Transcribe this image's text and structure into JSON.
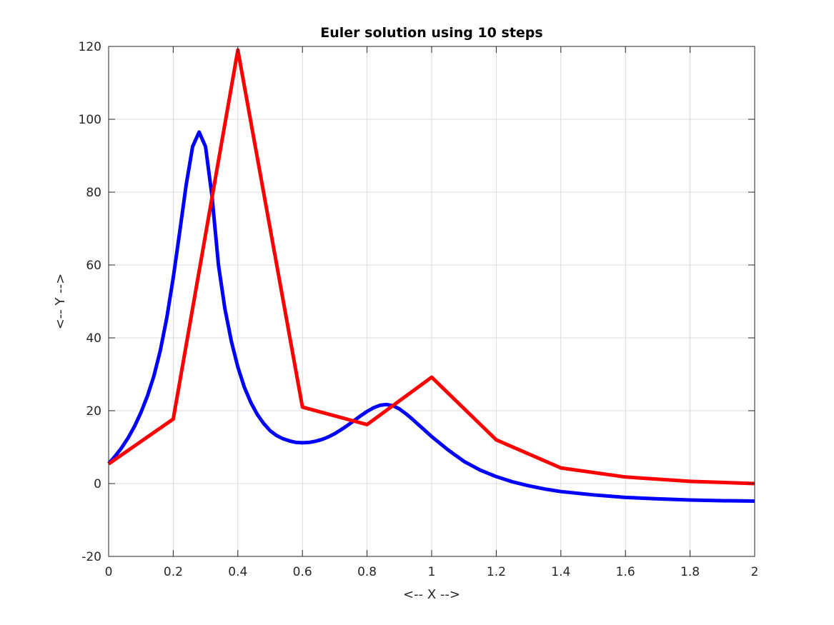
{
  "chart_data": {
    "type": "line",
    "title": "Euler solution using 10 steps",
    "xlabel": "<-- X -->",
    "ylabel": "<-- Y -->",
    "xlim": [
      0,
      2
    ],
    "ylim": [
      -20,
      120
    ],
    "xticks": [
      0,
      0.2,
      0.4,
      0.6,
      0.8,
      1,
      1.2,
      1.4,
      1.6,
      1.8,
      2
    ],
    "xtick_labels": [
      "0",
      "0.2",
      "0.4",
      "0.6",
      "0.8",
      "1",
      "1.2",
      "1.4",
      "1.6",
      "1.8",
      "2"
    ],
    "yticks": [
      -20,
      0,
      20,
      40,
      60,
      80,
      100,
      120
    ],
    "ytick_labels": [
      "-20",
      "0",
      "20",
      "40",
      "60",
      "80",
      "100",
      "120"
    ],
    "grid": true,
    "series": [
      {
        "color": "#0000ff",
        "x": [
          0,
          0.02,
          0.04,
          0.06,
          0.08,
          0.1,
          0.12,
          0.14,
          0.16,
          0.18,
          0.2,
          0.22,
          0.24,
          0.26,
          0.28,
          0.3,
          0.32,
          0.34,
          0.36,
          0.38,
          0.4,
          0.42,
          0.44,
          0.46,
          0.48,
          0.5,
          0.52,
          0.54,
          0.56,
          0.58,
          0.6,
          0.62,
          0.64,
          0.66,
          0.68,
          0.7,
          0.72,
          0.74,
          0.76,
          0.78,
          0.8,
          0.82,
          0.84,
          0.86,
          0.88,
          0.9,
          0.92,
          0.94,
          0.96,
          0.98,
          1.0,
          1.05,
          1.1,
          1.15,
          1.2,
          1.25,
          1.3,
          1.35,
          1.4,
          1.5,
          1.6,
          1.7,
          1.8,
          1.9,
          2.0
        ],
        "y": [
          5.5,
          7.5,
          9.8,
          12.5,
          15.7,
          19.5,
          24.0,
          29.5,
          36.5,
          45.5,
          56.5,
          69.0,
          82.0,
          92.5,
          96.5,
          92.5,
          79.0,
          60.0,
          48.0,
          39.0,
          32.0,
          26.5,
          22.3,
          19.0,
          16.5,
          14.5,
          13.2,
          12.3,
          11.7,
          11.3,
          11.2,
          11.3,
          11.6,
          12.1,
          12.8,
          13.7,
          14.8,
          16.0,
          17.3,
          18.6,
          19.8,
          20.8,
          21.5,
          21.7,
          21.4,
          20.5,
          19.2,
          17.7,
          16.1,
          14.5,
          12.9,
          9.3,
          6.1,
          3.7,
          1.9,
          0.5,
          -0.6,
          -1.5,
          -2.2,
          -3.1,
          -3.8,
          -4.2,
          -4.5,
          -4.7,
          -4.8
        ]
      },
      {
        "color": "#ff0000",
        "x": [
          0,
          0.2,
          0.4,
          0.6,
          0.8,
          1.0,
          1.2,
          1.4,
          1.6,
          1.8,
          2.0
        ],
        "y": [
          5.4,
          17.7,
          119.0,
          21.0,
          16.2,
          29.2,
          12.0,
          4.3,
          1.8,
          0.6,
          0.0
        ]
      }
    ]
  }
}
